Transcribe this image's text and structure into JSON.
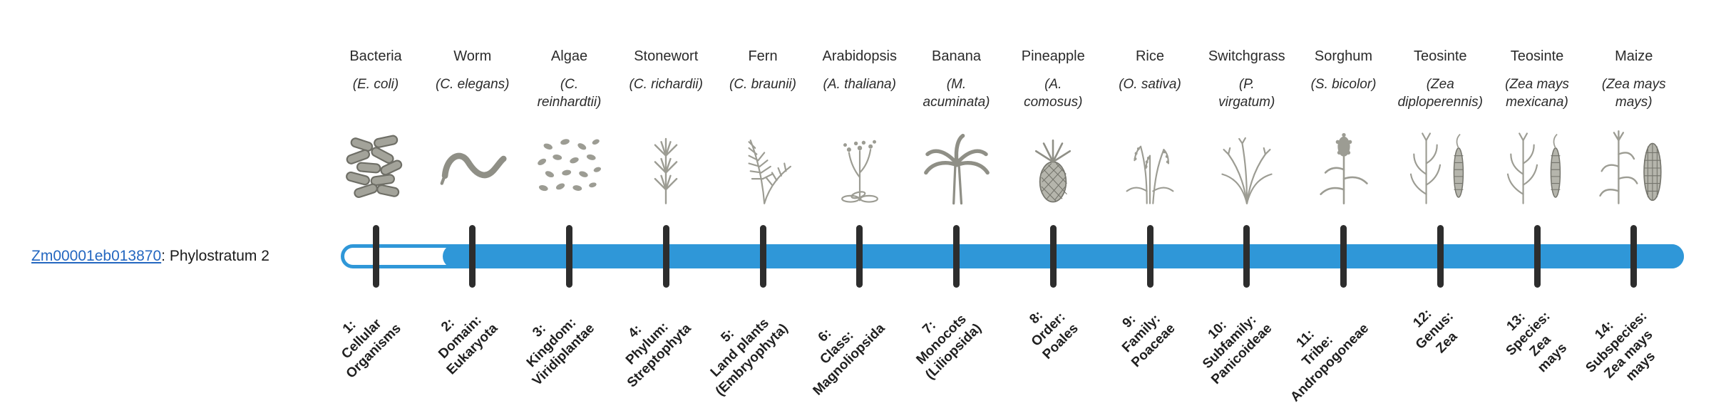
{
  "colors": {
    "bar": "#2f97d8",
    "tick": "#2d2d2d",
    "link": "#2467c0",
    "text": "#2b2b2b"
  },
  "gene": {
    "id": "Zm00001eb013870",
    "suffix": ": Phylostratum 2"
  },
  "organisms": [
    {
      "common": "Bacteria",
      "sci": "(E. coli)",
      "icon": "bacteria-icon",
      "stratum": "1:\nCellular\nOrganisms"
    },
    {
      "common": "Worm",
      "sci": "(C. elegans)",
      "icon": "worm-icon",
      "stratum": "2:\nDomain:\nEukaryota"
    },
    {
      "common": "Algae",
      "sci": "(C.\nreinhardtii)",
      "icon": "algae-icon",
      "stratum": "3:\nKingdom:\nViridiplantae"
    },
    {
      "common": "Stonewort",
      "sci": "(C. richardii)",
      "icon": "stonewort-icon",
      "stratum": "4:\nPhylum:\nStreptophyta"
    },
    {
      "common": "Fern",
      "sci": "(C. braunii)",
      "icon": "fern-icon",
      "stratum": "5:\nLand plants\n(Embryophyta)"
    },
    {
      "common": "Arabidopsis",
      "sci": "(A. thaliana)",
      "icon": "arabidopsis-icon",
      "stratum": "6:\nClass:\nMagnoliopsida"
    },
    {
      "common": "Banana",
      "sci": "(M.\nacuminata)",
      "icon": "banana-icon",
      "stratum": "7:\nMonocots\n(Liliopsida)"
    },
    {
      "common": "Pineapple",
      "sci": "(A.\ncomosus)",
      "icon": "pineapple-icon",
      "stratum": "8:\nOrder:\nPoales"
    },
    {
      "common": "Rice",
      "sci": "(O. sativa)",
      "icon": "rice-icon",
      "stratum": "9:\nFamily:\nPoaceae"
    },
    {
      "common": "Switchgrass",
      "sci": "(P.\nvirgatum)",
      "icon": "switchgrass-icon",
      "stratum": "10:\nSubfamily:\nPanicoideae"
    },
    {
      "common": "Sorghum",
      "sci": "(S. bicolor)",
      "icon": "sorghum-icon",
      "stratum": "11:\nTribe:\nAndropogoneae"
    },
    {
      "common": "Teosinte",
      "sci": "(Zea\ndiploperennis)",
      "icon": "teosinte-icon",
      "stratum": "12:\nGenus:\nZea"
    },
    {
      "common": "Teosinte",
      "sci": "(Zea mays\nmexicana)",
      "icon": "teosinte-icon",
      "stratum": "13:\nSpecies:\nZea\nmays"
    },
    {
      "common": "Maize",
      "sci": "(Zea mays\nmays)",
      "icon": "maize-icon",
      "stratum": "14:\nSubspecies:\nZea mays\nmays"
    }
  ]
}
